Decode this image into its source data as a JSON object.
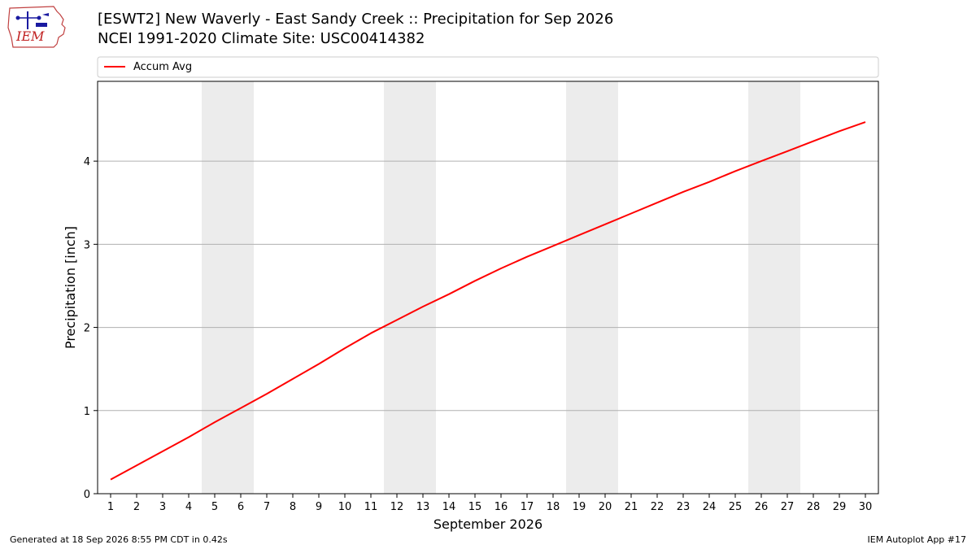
{
  "header": {
    "logo_text": "IEM",
    "title": "[ESWT2] New Waverly - East Sandy Creek :: Precipitation for Sep 2026",
    "subtitle": "NCEI 1991-2020 Climate Site: USC00414382"
  },
  "footer": {
    "generated": "Generated at 18 Sep 2026 8:55 PM CDT in 0.42s",
    "app": "IEM Autoplot App #17"
  },
  "chart_data": {
    "type": "line",
    "title": "[ESWT2] New Waverly - East Sandy Creek :: Precipitation for Sep 2026",
    "subtitle": "NCEI 1991-2020 Climate Site: USC00414382",
    "xlabel": "September 2026",
    "ylabel": "Precipitation [inch]",
    "x": [
      1,
      2,
      3,
      4,
      5,
      6,
      7,
      8,
      9,
      10,
      11,
      12,
      13,
      14,
      15,
      16,
      17,
      18,
      19,
      20,
      21,
      22,
      23,
      24,
      25,
      26,
      27,
      28,
      29,
      30
    ],
    "xlim": [
      0.5,
      30.5
    ],
    "ylim": [
      0,
      4.96
    ],
    "yticks": [
      0,
      1,
      2,
      3,
      4
    ],
    "grid": "y",
    "legend_position": "top",
    "weekend_shading": [
      [
        4.5,
        6.5
      ],
      [
        11.5,
        13.5
      ],
      [
        18.5,
        20.5
      ],
      [
        25.5,
        27.5
      ]
    ],
    "colors": {
      "line": "#ff0000",
      "grid": "#b0b0b0",
      "weekend": "#ececec"
    },
    "series": [
      {
        "name": "Accum Avg",
        "values": [
          0.17,
          0.34,
          0.51,
          0.68,
          0.86,
          1.03,
          1.2,
          1.38,
          1.56,
          1.75,
          1.93,
          2.09,
          2.25,
          2.4,
          2.56,
          2.71,
          2.85,
          2.98,
          3.11,
          3.24,
          3.37,
          3.5,
          3.63,
          3.75,
          3.88,
          4.0,
          4.12,
          4.24,
          4.36,
          4.47
        ]
      }
    ]
  }
}
